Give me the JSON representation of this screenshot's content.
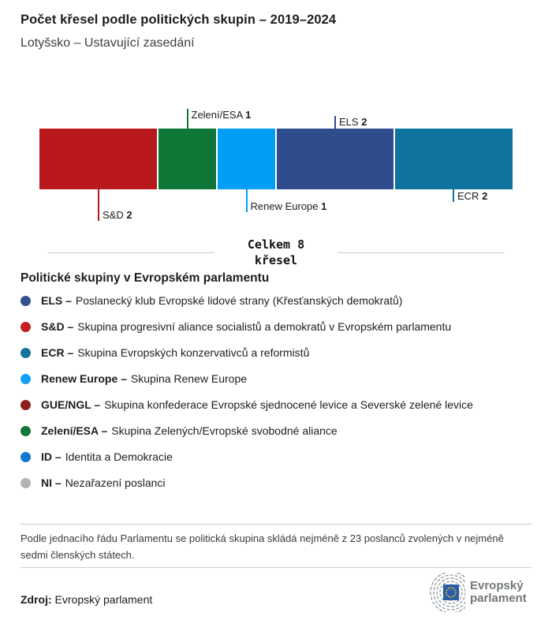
{
  "header": {
    "title": "Počet křesel podle politických skupin – 2019–2024",
    "subtitle": "Lotyšsko – Ustavující zasedání"
  },
  "chart_data": {
    "type": "bar",
    "variant": "horizontal-stacked-seat-bar",
    "title": "Počet křesel podle politických skupin – 2019–2024",
    "subtitle": "Lotyšsko – Ustavující zasedání",
    "total_seats": 8,
    "total_label_line1": "Celkem 8",
    "total_label_line2": "křesel",
    "categories": [
      "S&D",
      "Zelení/ESA",
      "Renew Europe",
      "ELS",
      "ECR"
    ],
    "values": [
      2,
      1,
      1,
      2,
      2
    ],
    "segments": [
      {
        "group": "S&D",
        "seats": 2,
        "color": "#b9181c",
        "callout": "below",
        "tick_len": 40
      },
      {
        "group": "Zelení/ESA",
        "seats": 1,
        "color": "#0e7637",
        "callout": "above",
        "tick_len": 25
      },
      {
        "group": "Renew Europe",
        "seats": 1,
        "color": "#009ef4",
        "callout": "below",
        "tick_len": 29
      },
      {
        "group": "ELS",
        "seats": 2,
        "color": "#2f4c8c",
        "callout": "above",
        "tick_len": 16
      },
      {
        "group": "ECR",
        "seats": 2,
        "color": "#0e749d",
        "callout": "below",
        "tick_len": 16
      }
    ]
  },
  "legend": {
    "title": "Politické skupiny v Evropském parlamentu",
    "items": [
      {
        "abbr": "ELS –",
        "description": "Poslanecký klub Evropské lidové strany (Křesťanských demokratů)",
        "color": "#33508f"
      },
      {
        "abbr": "S&D –",
        "description": "Skupina progresivní aliance socialistů a demokratů v Evropském parlamentu",
        "color": "#c41d22"
      },
      {
        "abbr": "ECR –",
        "description": "Skupina Evropských konzervativců a reformistů",
        "color": "#15749c"
      },
      {
        "abbr": "Renew Europe –",
        "description": "Skupina Renew Europe",
        "color": "#12a0f6"
      },
      {
        "abbr": "GUE/NGL –",
        "description": "Skupina konfederace Evropské sjednocené levice a Severské zelené levice",
        "color": "#8f1d20"
      },
      {
        "abbr": "Zelení/ESA –",
        "description": "Skupina Zelených/Evropské svobodné aliance",
        "color": "#13773a"
      },
      {
        "abbr": "ID –",
        "description": "Identita a Demokracie",
        "color": "#1077d2"
      },
      {
        "abbr": "NI –",
        "description": "Nezařazení poslanci",
        "color": "#b4b4b8"
      }
    ]
  },
  "footer": {
    "note": "Podle jednacího řádu Parlamentu se politická skupina skládá nejméně z 23 poslanců zvolených v nejméně sedmi členských státech.",
    "source_label": "Zdroj:",
    "source_value": "Evropský parlament",
    "logo_text_line1": "Evropský",
    "logo_text_line2": "parlament",
    "logo_flag_color": "#2d5ca8",
    "logo_star_color": "#ffd617",
    "logo_arc_color": "#9aa0a4"
  }
}
